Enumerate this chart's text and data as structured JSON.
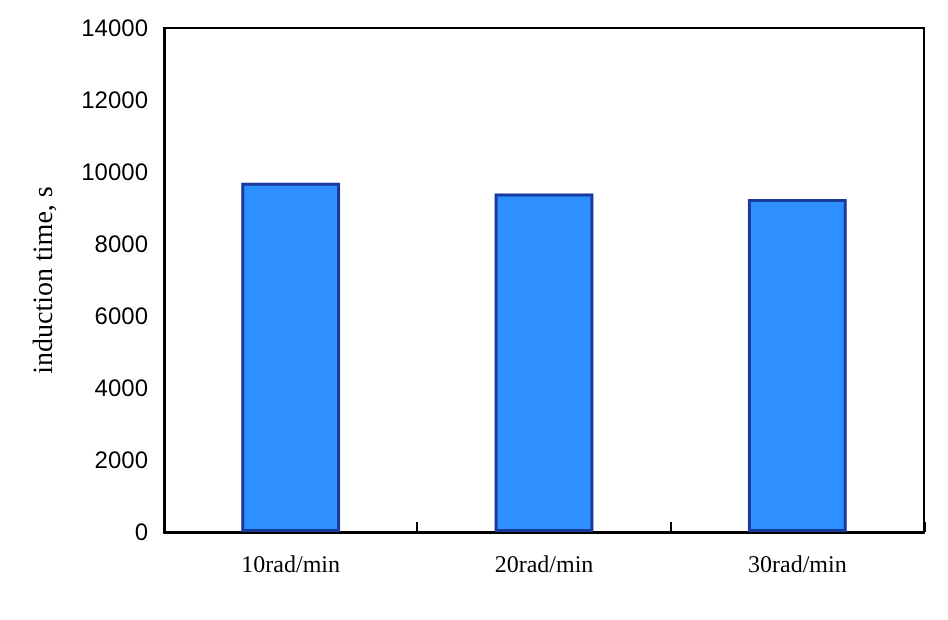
{
  "chart_data": {
    "type": "bar",
    "ylabel": "induction time, s",
    "categories": [
      "10rad/min",
      "20rad/min",
      "30rad/min"
    ],
    "values": [
      9700,
      9400,
      9250
    ],
    "color": "#2e8fff",
    "ylim": [
      0,
      14000
    ],
    "yticks": [
      0,
      2000,
      4000,
      6000,
      8000,
      10000,
      12000,
      14000
    ]
  }
}
